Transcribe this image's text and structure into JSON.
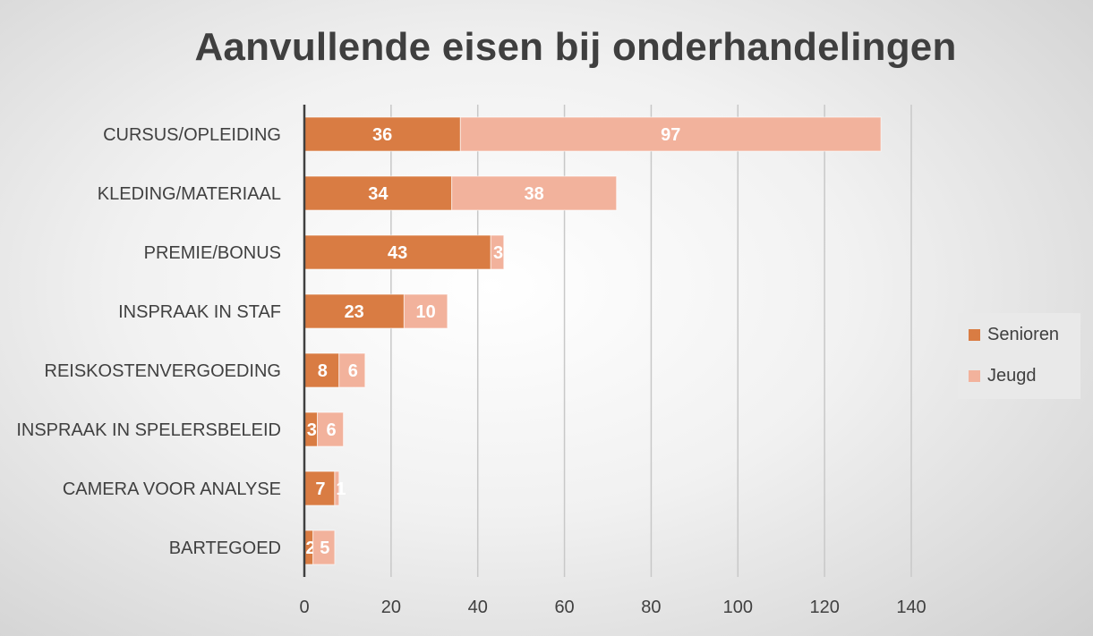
{
  "chart_data": {
    "type": "bar",
    "orientation": "horizontal",
    "stacked": true,
    "title": "Aanvullende eisen bij onderhandelingen",
    "categories": [
      "CURSUS/OPLEIDING",
      "KLEDING/MATERIAAL",
      "PREMIE/BONUS",
      "INSPRAAK IN STAF",
      "REISKOSTENVERGOEDING",
      "INSPRAAK IN SPELERSBELEID",
      "CAMERA VOOR ANALYSE",
      "BARTEGOED"
    ],
    "series": [
      {
        "name": "Senioren",
        "color": "#d97c43",
        "values": [
          36,
          34,
          43,
          23,
          8,
          3,
          7,
          2
        ]
      },
      {
        "name": "Jeugd",
        "color": "#f2b29c",
        "values": [
          97,
          38,
          3,
          10,
          6,
          6,
          1,
          5
        ]
      }
    ],
    "xlim": [
      0,
      140
    ],
    "xticks": [
      0,
      20,
      40,
      60,
      80,
      100,
      120,
      140
    ],
    "grid": true,
    "legend_position": "right",
    "data_labels": true
  }
}
